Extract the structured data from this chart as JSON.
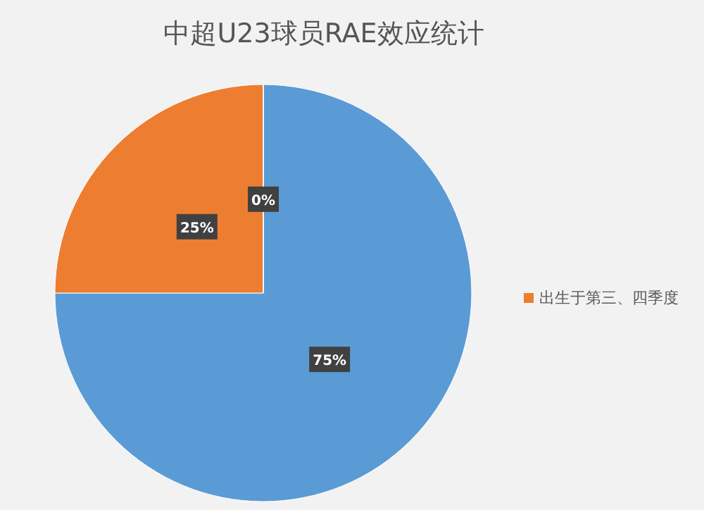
{
  "chart_data": {
    "type": "pie",
    "title": "中超U23球员RAE效应统计",
    "categories": [
      null,
      "出生于第三、四季度",
      null
    ],
    "values": [
      75,
      25,
      0
    ],
    "colors": [
      "#5b9bd5",
      "#ed7d31",
      "#a5a5a5"
    ],
    "value_labels": [
      "75%",
      "25%",
      "0%"
    ],
    "legend": "right"
  }
}
